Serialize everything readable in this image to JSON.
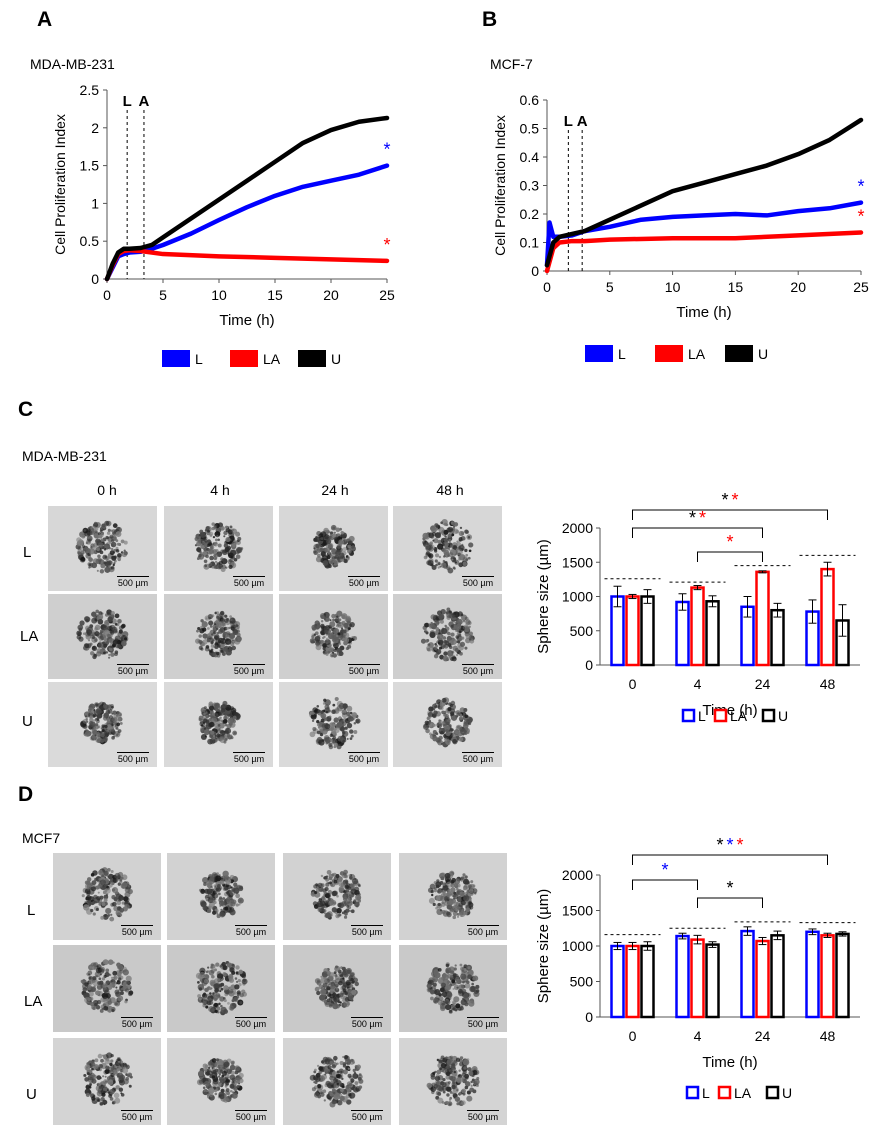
{
  "panels": {
    "A": {
      "letter": "A",
      "title": "MDA-MB-231"
    },
    "B": {
      "letter": "B",
      "title": "MCF-7"
    },
    "C": {
      "letter": "C",
      "title": "MDA-MB-231",
      "time_labels": [
        "0 h",
        "4 h",
        "24 h",
        "48 h"
      ],
      "row_labels": [
        "L",
        "LA",
        "U"
      ],
      "scale_bar": "500 µm"
    },
    "D": {
      "letter": "D",
      "title": "MCF7",
      "row_labels": [
        "L",
        "LA",
        "U"
      ],
      "scale_bar": "500 µm"
    }
  },
  "colors": {
    "L": "#0000ff",
    "LA": "#ff0000",
    "U": "#000000"
  },
  "chart_data": [
    {
      "id": "A",
      "type": "line",
      "xlabel": "Time (h)",
      "ylabel": "Cell Proliferation Index",
      "xlim": [
        0,
        25
      ],
      "ylim": [
        0,
        2.5
      ],
      "xticks": [
        "0",
        "5",
        "10",
        "15",
        "20",
        "25"
      ],
      "yticks": [
        "0",
        "0.5",
        "1",
        "1.5",
        "2",
        "2.5"
      ],
      "markers": [
        {
          "label": "L",
          "x": 1.8
        },
        {
          "label": "A",
          "x": 3.3
        }
      ],
      "legend": [
        "L",
        "LA",
        "U"
      ],
      "series": [
        {
          "name": "L",
          "x": [
            0,
            0.5,
            1,
            1.5,
            2,
            3,
            4,
            5,
            7.5,
            10,
            12.5,
            15,
            17.5,
            20,
            22.5,
            25
          ],
          "values": [
            0,
            0.15,
            0.3,
            0.33,
            0.35,
            0.36,
            0.4,
            0.45,
            0.6,
            0.78,
            0.95,
            1.1,
            1.22,
            1.3,
            1.38,
            1.5
          ]
        },
        {
          "name": "LA",
          "x": [
            0,
            0.5,
            1,
            1.5,
            2,
            3,
            5,
            10,
            15,
            20,
            25
          ],
          "values": [
            0,
            0.18,
            0.33,
            0.37,
            0.38,
            0.37,
            0.33,
            0.3,
            0.28,
            0.26,
            0.24
          ]
        },
        {
          "name": "U",
          "x": [
            0,
            0.5,
            1,
            1.5,
            2,
            3,
            4,
            5,
            7.5,
            10,
            12.5,
            15,
            17.5,
            20,
            22.5,
            25
          ],
          "values": [
            0,
            0.2,
            0.35,
            0.4,
            0.4,
            0.41,
            0.45,
            0.55,
            0.8,
            1.05,
            1.3,
            1.55,
            1.8,
            1.97,
            2.08,
            2.13
          ]
        }
      ],
      "significance": [
        {
          "series": "L",
          "label": "*"
        },
        {
          "series": "LA",
          "label": "*"
        }
      ]
    },
    {
      "id": "B",
      "type": "line",
      "xlabel": "Time (h)",
      "ylabel": "Cell Proliferation Index",
      "xlim": [
        0,
        25
      ],
      "ylim": [
        0,
        0.6
      ],
      "xticks": [
        "0",
        "5",
        "10",
        "15",
        "20",
        "25"
      ],
      "yticks": [
        "0",
        "0.1",
        "0.2",
        "0.3",
        "0.4",
        "0.5",
        "0.6"
      ],
      "markers": [
        {
          "label": "L",
          "x": 1.7
        },
        {
          "label": "A",
          "x": 2.8
        }
      ],
      "legend": [
        "L",
        "LA",
        "U"
      ],
      "series": [
        {
          "name": "L",
          "x": [
            0,
            0.2,
            0.5,
            1,
            2,
            3,
            5,
            7.5,
            10,
            12.5,
            15,
            17.5,
            20,
            22.5,
            25
          ],
          "values": [
            0.02,
            0.17,
            0.12,
            0.12,
            0.125,
            0.14,
            0.155,
            0.18,
            0.19,
            0.195,
            0.2,
            0.195,
            0.21,
            0.22,
            0.24
          ]
        },
        {
          "name": "LA",
          "x": [
            0,
            0.5,
            1,
            2,
            3,
            5,
            10,
            15,
            20,
            25
          ],
          "values": [
            0,
            0.08,
            0.1,
            0.105,
            0.105,
            0.11,
            0.115,
            0.115,
            0.125,
            0.135
          ]
        },
        {
          "name": "U",
          "x": [
            0,
            0.5,
            1,
            2,
            3,
            5,
            7.5,
            10,
            12.5,
            15,
            17.5,
            20,
            22.5,
            25
          ],
          "values": [
            0.02,
            0.1,
            0.12,
            0.13,
            0.14,
            0.18,
            0.23,
            0.28,
            0.31,
            0.34,
            0.37,
            0.41,
            0.46,
            0.53
          ]
        }
      ],
      "significance": [
        {
          "series": "L",
          "label": "*"
        },
        {
          "series": "LA",
          "label": "*"
        }
      ]
    },
    {
      "id": "C",
      "type": "bar",
      "xlabel": "Time (h)",
      "ylabel": "Sphere size (µm)",
      "ylim": [
        0,
        2000
      ],
      "yticks": [
        "0",
        "500",
        "1000",
        "1500",
        "2000"
      ],
      "categories": [
        "0",
        "4",
        "24",
        "48"
      ],
      "legend": [
        "L",
        "LA",
        "U"
      ],
      "series": [
        {
          "name": "L",
          "values": [
            1000,
            920,
            850,
            780
          ],
          "errors": [
            150,
            120,
            150,
            170
          ]
        },
        {
          "name": "LA",
          "values": [
            1000,
            1130,
            1360,
            1400
          ],
          "errors": [
            30,
            30,
            15,
            100
          ]
        },
        {
          "name": "U",
          "values": [
            1000,
            930,
            800,
            650
          ],
          "errors": [
            100,
            80,
            100,
            230
          ]
        }
      ],
      "dashed_refs": [
        1260,
        1210,
        1450,
        1600
      ],
      "brackets": [
        {
          "from": 0,
          "to": 3,
          "stars": [
            {
              "text": "*",
              "color": "#000000"
            },
            {
              "text": "*",
              "color": "#ff0000"
            }
          ]
        },
        {
          "from": 0,
          "to": 2,
          "stars": [
            {
              "text": "*",
              "color": "#000000"
            },
            {
              "text": "*",
              "color": "#ff0000"
            }
          ]
        },
        {
          "from": 1,
          "to": 2,
          "stars": [
            {
              "text": "*",
              "color": "#ff0000"
            }
          ]
        }
      ]
    },
    {
      "id": "D",
      "type": "bar",
      "xlabel": "Time (h)",
      "ylabel": "Sphere size (µm)",
      "ylim": [
        0,
        2000
      ],
      "yticks": [
        "0",
        "500",
        "1000",
        "1500",
        "2000"
      ],
      "categories": [
        "0",
        "4",
        "24",
        "48"
      ],
      "legend": [
        "L",
        "LA",
        "U"
      ],
      "series": [
        {
          "name": "L",
          "values": [
            1000,
            1140,
            1210,
            1200
          ],
          "errors": [
            50,
            40,
            60,
            40
          ]
        },
        {
          "name": "LA",
          "values": [
            1000,
            1090,
            1070,
            1150
          ],
          "errors": [
            50,
            60,
            50,
            30
          ]
        },
        {
          "name": "U",
          "values": [
            1000,
            1020,
            1150,
            1170
          ],
          "errors": [
            60,
            40,
            60,
            30
          ]
        }
      ],
      "dashed_refs": [
        1160,
        1250,
        1340,
        1330
      ],
      "brackets": [
        {
          "from": 0,
          "to": 3,
          "stars": [
            {
              "text": "*",
              "color": "#000000"
            },
            {
              "text": "*",
              "color": "#0000ff"
            },
            {
              "text": "*",
              "color": "#ff0000"
            }
          ]
        },
        {
          "from": 0,
          "to": 1,
          "stars": [
            {
              "text": "*",
              "color": "#0000ff"
            }
          ]
        },
        {
          "from": 1,
          "to": 2,
          "stars": [
            {
              "text": "*",
              "color": "#000000"
            }
          ]
        }
      ]
    }
  ]
}
